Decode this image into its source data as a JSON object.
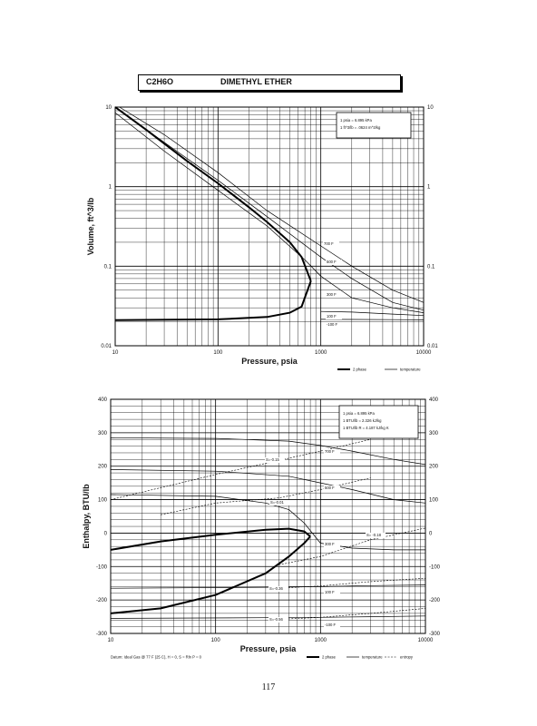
{
  "header": {
    "formula": "C2H6O",
    "name": "DIMETHYL ETHER"
  },
  "page_number": "117",
  "chart_data": [
    {
      "type": "line",
      "xscale": "log",
      "yscale": "log",
      "xlabel": "Pressure,  psia",
      "ylabel": "Volume, ft^3/lb",
      "xlim": [
        10,
        10000
      ],
      "ylim": [
        0.01,
        10
      ],
      "x_ticks": [
        "10",
        "100",
        "1000",
        "10000"
      ],
      "y_ticks_left": [
        "0.01",
        "0.1",
        "1",
        "10"
      ],
      "y_ticks_right": [
        "0.01",
        "0.1",
        "1",
        "10"
      ],
      "note_lines": [
        "1 psia = 6.895 kPa",
        "1 ft^3/lb = .0624 m^3/kg"
      ],
      "legend": [
        "2 phase",
        "temperature"
      ],
      "dome": {
        "vapor": [
          [
            10,
            10
          ],
          [
            20,
            5.2
          ],
          [
            50,
            2.1
          ],
          [
            100,
            1.1
          ],
          [
            200,
            0.55
          ],
          [
            300,
            0.36
          ],
          [
            500,
            0.2
          ],
          [
            650,
            0.13
          ],
          [
            800,
            0.065
          ]
        ],
        "liquid": [
          [
            10,
            0.021
          ],
          [
            100,
            0.0215
          ],
          [
            300,
            0.023
          ],
          [
            500,
            0.026
          ],
          [
            650,
            0.031
          ],
          [
            800,
            0.065
          ]
        ]
      },
      "isotherms": [
        {
          "label": "700 F",
          "points": [
            [
              11,
              10
            ],
            [
              30,
              4.5
            ],
            [
              100,
              1.5
            ],
            [
              300,
              0.5
            ],
            [
              1000,
              0.18
            ],
            [
              2000,
              0.1
            ],
            [
              5000,
              0.05
            ],
            [
              10000,
              0.035
            ]
          ]
        },
        {
          "label": "500 F",
          "points": [
            [
              10,
              10
            ],
            [
              30,
              3.6
            ],
            [
              100,
              1.2
            ],
            [
              300,
              0.42
            ],
            [
              1000,
              0.13
            ],
            [
              2000,
              0.07
            ],
            [
              5000,
              0.035
            ],
            [
              10000,
              0.028
            ]
          ]
        },
        {
          "label": "300 F",
          "points": [
            [
              10,
              8.5
            ],
            [
              30,
              2.8
            ],
            [
              100,
              0.9
            ],
            [
              300,
              0.32
            ],
            [
              700,
              0.12
            ],
            [
              1000,
              0.075
            ],
            [
              2000,
              0.04
            ],
            [
              5000,
              0.03
            ],
            [
              10000,
              0.026
            ]
          ]
        },
        {
          "label": "100 F",
          "points": [
            [
              1000,
              0.027
            ],
            [
              2000,
              0.0265
            ],
            [
              5000,
              0.025
            ],
            [
              10000,
              0.024
            ]
          ]
        },
        {
          "label": "-100 F",
          "points": [
            [
              1000,
              0.0215
            ],
            [
              2000,
              0.0214
            ],
            [
              5000,
              0.0213
            ],
            [
              10000,
              0.0212
            ]
          ]
        }
      ]
    },
    {
      "type": "line",
      "xscale": "log",
      "yscale": "linear",
      "xlabel": "Pressure,  psia",
      "ylabel": "Enthalpy, BTU/lb",
      "xlim": [
        10,
        10000
      ],
      "ylim": [
        -300,
        400
      ],
      "x_ticks": [
        "10",
        "100",
        "1000",
        "10000"
      ],
      "y_ticks_left": [
        "-300",
        "-200",
        "-100",
        "0",
        "100",
        "200",
        "300",
        "400"
      ],
      "y_ticks_right": [
        "-300",
        "-200",
        "-100",
        "0",
        "100",
        "200",
        "300",
        "400"
      ],
      "note_lines": [
        "1 psia = 6.895 kPa",
        "1 BTU/lb = 2.326 kJ/kg",
        "1 BTU/lb R = 4.187 kJ/kg K"
      ],
      "legend": [
        "2 phase",
        "temperature",
        "entropy"
      ],
      "footnote": "Datum: Ideal Gas @ 77 F (25 C), H = 0, S = Rln P = 0",
      "dome": {
        "vapor": [
          [
            10,
            -50
          ],
          [
            30,
            -25
          ],
          [
            100,
            -5
          ],
          [
            300,
            10
          ],
          [
            500,
            13
          ],
          [
            700,
            5
          ],
          [
            800,
            -10
          ]
        ],
        "liquid": [
          [
            10,
            -240
          ],
          [
            30,
            -225
          ],
          [
            100,
            -185
          ],
          [
            300,
            -120
          ],
          [
            500,
            -70
          ],
          [
            700,
            -30
          ],
          [
            800,
            -10
          ]
        ]
      },
      "isotherms": [
        {
          "label": "700 F",
          "points": [
            [
              10,
              285
            ],
            [
              100,
              283
            ],
            [
              500,
              275
            ],
            [
              1000,
              262
            ],
            [
              2000,
              245
            ],
            [
              5000,
              220
            ],
            [
              10000,
              205
            ]
          ]
        },
        {
          "label": "500 F",
          "points": [
            [
              10,
              190
            ],
            [
              100,
              185
            ],
            [
              500,
              170
            ],
            [
              1000,
              150
            ],
            [
              2000,
              130
            ],
            [
              5000,
              100
            ],
            [
              10000,
              90
            ]
          ]
        },
        {
          "label": "300 F",
          "points": [
            [
              10,
              115
            ],
            [
              100,
              110
            ],
            [
              300,
              90
            ],
            [
              500,
              70
            ],
            [
              700,
              30
            ],
            [
              1000,
              -30
            ],
            [
              2000,
              -45
            ],
            [
              5000,
              -50
            ],
            [
              10000,
              -50
            ]
          ]
        },
        {
          "label": "100 F",
          "points": [
            [
              10,
              -165
            ],
            [
              300,
              -162
            ],
            [
              1000,
              -160
            ],
            [
              3000,
              -157
            ],
            [
              10000,
              -155
            ]
          ]
        },
        {
          "label": "-100 F",
          "points": [
            [
              10,
              -255
            ],
            [
              300,
              -253
            ],
            [
              1000,
              -252
            ],
            [
              3000,
              -250
            ],
            [
              10000,
              -248
            ]
          ]
        }
      ],
      "entropy_lines": [
        {
          "label": "S=-0.15",
          "points": [
            [
              10,
              100
            ],
            [
              100,
              175
            ],
            [
              1000,
              245
            ],
            [
              3000,
              280
            ]
          ]
        },
        {
          "label": "S=-0.01",
          "points": [
            [
              30,
              55
            ],
            [
              100,
              90
            ],
            [
              400,
              105
            ],
            [
              1000,
              130
            ],
            [
              3000,
              165
            ]
          ]
        },
        {
          "label": "S= -0.18",
          "points": [
            [
              400,
              -95
            ],
            [
              1000,
              -70
            ],
            [
              3000,
              -20
            ],
            [
              10000,
              15
            ]
          ]
        },
        {
          "label": "S=-0.36",
          "points": [
            [
              400,
              -165
            ],
            [
              1000,
              -158
            ],
            [
              3000,
              -145
            ],
            [
              10000,
              -135
            ]
          ]
        },
        {
          "label": "S=-0.56",
          "points": [
            [
              400,
              -258
            ],
            [
              1000,
              -252
            ],
            [
              3000,
              -240
            ],
            [
              10000,
              -225
            ]
          ]
        }
      ]
    }
  ]
}
